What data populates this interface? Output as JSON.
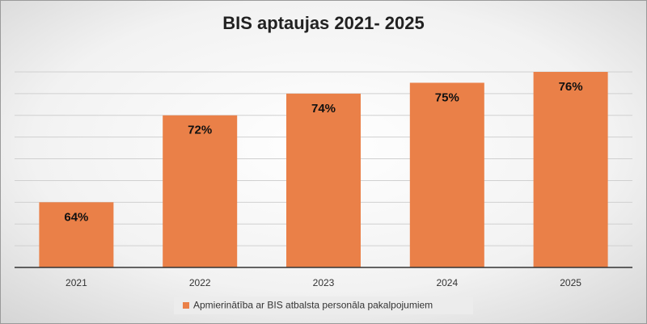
{
  "chart_data": {
    "type": "bar",
    "title": "BIS aptaujas 2021- 2025",
    "categories": [
      "2021",
      "2022",
      "2023",
      "2024",
      "2025"
    ],
    "series": [
      {
        "name": "Apmierinātība ar BIS atbalsta personāla pakalpojumiem",
        "color": "#ea8048",
        "values": [
          64,
          72,
          74,
          75,
          76
        ],
        "value_labels": [
          "64%",
          "72%",
          "74%",
          "75%",
          "76%"
        ]
      }
    ],
    "ylim": [
      58,
      76
    ],
    "yticks": [
      58,
      60,
      62,
      64,
      66,
      68,
      70,
      72,
      74,
      76
    ],
    "grid": true,
    "legend": "bottom"
  }
}
